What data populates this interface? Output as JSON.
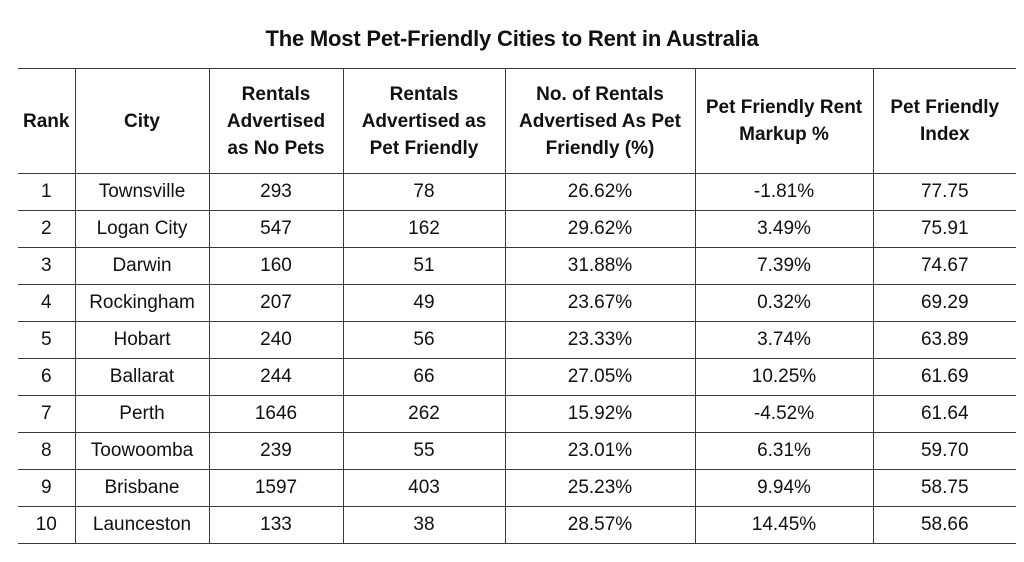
{
  "chart_data": {
    "type": "table",
    "title": "The Most Pet-Friendly Cities to Rent in Australia",
    "columns": [
      "Rank",
      "City",
      "Rentals Advertised as No Pets",
      "Rentals Advertised as Pet Friendly",
      "No. of Rentals Advertised As Pet Friendly (%)",
      "Pet Friendly Rent Markup %",
      "Pet Friendly Index"
    ],
    "rows": [
      [
        "1",
        "Townsville",
        "293",
        "78",
        "26.62%",
        "-1.81%",
        "77.75"
      ],
      [
        "2",
        "Logan City",
        "547",
        "162",
        "29.62%",
        "3.49%",
        "75.91"
      ],
      [
        "3",
        "Darwin",
        "160",
        "51",
        "31.88%",
        "7.39%",
        "74.67"
      ],
      [
        "4",
        "Rockingham",
        "207",
        "49",
        "23.67%",
        "0.32%",
        "69.29"
      ],
      [
        "5",
        "Hobart",
        "240",
        "56",
        "23.33%",
        "3.74%",
        "63.89"
      ],
      [
        "6",
        "Ballarat",
        "244",
        "66",
        "27.05%",
        "10.25%",
        "61.69"
      ],
      [
        "7",
        "Perth",
        "1646",
        "262",
        "15.92%",
        "-4.52%",
        "61.64"
      ],
      [
        "8",
        "Toowoomba",
        "239",
        "55",
        "23.01%",
        "6.31%",
        "59.70"
      ],
      [
        "9",
        "Brisbane",
        "1597",
        "403",
        "25.23%",
        "9.94%",
        "58.75"
      ],
      [
        "10",
        "Launceston",
        "133",
        "38",
        "28.57%",
        "14.45%",
        "58.66"
      ]
    ]
  }
}
